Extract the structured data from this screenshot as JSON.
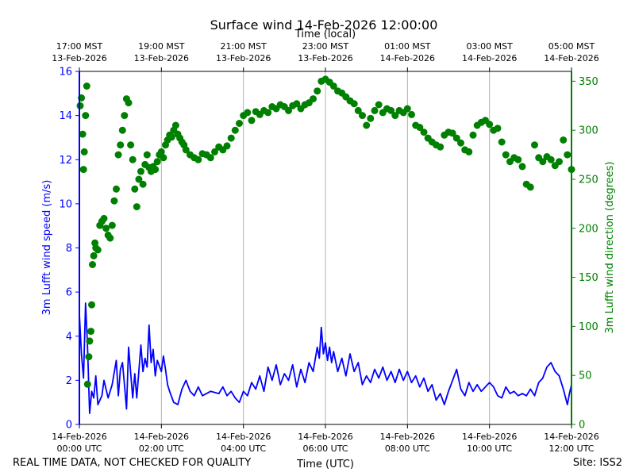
{
  "footer": {
    "left_note": "REAL TIME DATA, NOT CHECKED FOR QUALITY",
    "site": "Site: ISS2"
  },
  "colors": {
    "speed": "#0000ff",
    "direction": "#008000",
    "grid": "#b0b0b0"
  },
  "chart_data": {
    "type": "line",
    "title": "Surface wind 14-Feb-2026 12:00:00",
    "xlabel": "Time (UTC)",
    "xlabel_top": "Time (local)",
    "ylabel": "3m Lufft wind speed (m/s)",
    "ylabel_right": "3m Lufft wind direction (degrees)",
    "xlim_hours": [
      0,
      12
    ],
    "ylim": [
      0,
      16
    ],
    "ylim_right": [
      0,
      360
    ],
    "yticks": [
      "0",
      "2",
      "4",
      "6",
      "8",
      "10",
      "12",
      "14",
      "16"
    ],
    "yticks_right": [
      "0",
      "50",
      "100",
      "150",
      "200",
      "250",
      "300",
      "350"
    ],
    "xticks_bottom": [
      {
        "hour": 0,
        "date": "14-Feb-2026",
        "time": "00:00 UTC"
      },
      {
        "hour": 2,
        "date": "14-Feb-2026",
        "time": "02:00 UTC"
      },
      {
        "hour": 4,
        "date": "14-Feb-2026",
        "time": "04:00 UTC"
      },
      {
        "hour": 6,
        "date": "14-Feb-2026",
        "time": "06:00 UTC"
      },
      {
        "hour": 8,
        "date": "14-Feb-2026",
        "time": "08:00 UTC"
      },
      {
        "hour": 10,
        "date": "14-Feb-2026",
        "time": "10:00 UTC"
      },
      {
        "hour": 12,
        "date": "14-Feb-2026",
        "time": "12:00 UTC"
      }
    ],
    "xticks_top": [
      {
        "hour": 0,
        "time": "17:00 MST",
        "date": "13-Feb-2026"
      },
      {
        "hour": 2,
        "time": "19:00 MST",
        "date": "13-Feb-2026"
      },
      {
        "hour": 4,
        "time": "21:00 MST",
        "date": "13-Feb-2026"
      },
      {
        "hour": 6,
        "time": "23:00 MST",
        "date": "13-Feb-2026"
      },
      {
        "hour": 8,
        "time": "01:00 MST",
        "date": "14-Feb-2026"
      },
      {
        "hour": 10,
        "time": "03:00 MST",
        "date": "14-Feb-2026"
      },
      {
        "hour": 12,
        "time": "05:00 MST",
        "date": "14-Feb-2026"
      }
    ],
    "series": [
      {
        "name": "3m Lufft wind speed",
        "axis": "left",
        "style": "line",
        "points": [
          [
            0.0,
            5.0
          ],
          [
            0.05,
            3.2
          ],
          [
            0.1,
            2.1
          ],
          [
            0.15,
            5.5
          ],
          [
            0.2,
            3.5
          ],
          [
            0.25,
            0.5
          ],
          [
            0.3,
            1.5
          ],
          [
            0.35,
            1.2
          ],
          [
            0.4,
            2.2
          ],
          [
            0.45,
            0.9
          ],
          [
            0.55,
            1.3
          ],
          [
            0.6,
            2.0
          ],
          [
            0.7,
            1.2
          ],
          [
            0.8,
            1.8
          ],
          [
            0.9,
            2.9
          ],
          [
            0.95,
            1.3
          ],
          [
            1.0,
            2.5
          ],
          [
            1.05,
            2.8
          ],
          [
            1.1,
            1.8
          ],
          [
            1.15,
            0.7
          ],
          [
            1.2,
            3.5
          ],
          [
            1.3,
            1.2
          ],
          [
            1.35,
            2.3
          ],
          [
            1.4,
            1.2
          ],
          [
            1.5,
            3.6
          ],
          [
            1.55,
            2.4
          ],
          [
            1.6,
            3.0
          ],
          [
            1.65,
            2.6
          ],
          [
            1.7,
            4.5
          ],
          [
            1.75,
            2.8
          ],
          [
            1.8,
            3.4
          ],
          [
            1.85,
            2.2
          ],
          [
            1.9,
            2.9
          ],
          [
            2.0,
            2.4
          ],
          [
            2.05,
            3.1
          ],
          [
            2.1,
            2.5
          ],
          [
            2.15,
            1.8
          ],
          [
            2.2,
            1.5
          ],
          [
            2.3,
            1.0
          ],
          [
            2.4,
            0.9
          ],
          [
            2.5,
            1.6
          ],
          [
            2.6,
            2.0
          ],
          [
            2.7,
            1.5
          ],
          [
            2.8,
            1.3
          ],
          [
            2.9,
            1.7
          ],
          [
            3.0,
            1.3
          ],
          [
            3.2,
            1.5
          ],
          [
            3.4,
            1.4
          ],
          [
            3.5,
            1.7
          ],
          [
            3.6,
            1.3
          ],
          [
            3.7,
            1.5
          ],
          [
            3.8,
            1.2
          ],
          [
            3.9,
            1.0
          ],
          [
            4.0,
            1.5
          ],
          [
            4.1,
            1.3
          ],
          [
            4.2,
            1.9
          ],
          [
            4.3,
            1.6
          ],
          [
            4.4,
            2.2
          ],
          [
            4.5,
            1.5
          ],
          [
            4.6,
            2.6
          ],
          [
            4.7,
            2.0
          ],
          [
            4.8,
            2.7
          ],
          [
            4.9,
            1.8
          ],
          [
            5.0,
            2.3
          ],
          [
            5.1,
            2.0
          ],
          [
            5.2,
            2.7
          ],
          [
            5.3,
            1.7
          ],
          [
            5.4,
            2.5
          ],
          [
            5.5,
            1.9
          ],
          [
            5.6,
            2.8
          ],
          [
            5.7,
            2.4
          ],
          [
            5.8,
            3.5
          ],
          [
            5.85,
            3.0
          ],
          [
            5.9,
            4.4
          ],
          [
            5.95,
            3.2
          ],
          [
            6.0,
            3.7
          ],
          [
            6.05,
            2.9
          ],
          [
            6.1,
            3.5
          ],
          [
            6.15,
            2.8
          ],
          [
            6.2,
            3.3
          ],
          [
            6.3,
            2.4
          ],
          [
            6.4,
            3.0
          ],
          [
            6.5,
            2.2
          ],
          [
            6.6,
            3.2
          ],
          [
            6.7,
            2.4
          ],
          [
            6.8,
            2.8
          ],
          [
            6.9,
            1.8
          ],
          [
            7.0,
            2.2
          ],
          [
            7.1,
            1.9
          ],
          [
            7.2,
            2.5
          ],
          [
            7.3,
            2.1
          ],
          [
            7.4,
            2.6
          ],
          [
            7.5,
            2.0
          ],
          [
            7.6,
            2.4
          ],
          [
            7.7,
            1.9
          ],
          [
            7.8,
            2.5
          ],
          [
            7.9,
            2.0
          ],
          [
            8.0,
            2.4
          ],
          [
            8.1,
            1.9
          ],
          [
            8.2,
            2.2
          ],
          [
            8.3,
            1.7
          ],
          [
            8.4,
            2.1
          ],
          [
            8.5,
            1.5
          ],
          [
            8.6,
            1.8
          ],
          [
            8.7,
            1.1
          ],
          [
            8.8,
            1.4
          ],
          [
            8.9,
            0.9
          ],
          [
            9.0,
            1.5
          ],
          [
            9.1,
            2.0
          ],
          [
            9.2,
            2.5
          ],
          [
            9.3,
            1.6
          ],
          [
            9.4,
            1.3
          ],
          [
            9.5,
            1.9
          ],
          [
            9.6,
            1.5
          ],
          [
            9.7,
            1.8
          ],
          [
            9.8,
            1.5
          ],
          [
            9.9,
            1.7
          ],
          [
            10.0,
            1.9
          ],
          [
            10.1,
            1.7
          ],
          [
            10.2,
            1.3
          ],
          [
            10.3,
            1.2
          ],
          [
            10.4,
            1.7
          ],
          [
            10.5,
            1.4
          ],
          [
            10.6,
            1.5
          ],
          [
            10.7,
            1.3
          ],
          [
            10.8,
            1.4
          ],
          [
            10.9,
            1.3
          ],
          [
            11.0,
            1.6
          ],
          [
            11.1,
            1.3
          ],
          [
            11.2,
            1.9
          ],
          [
            11.3,
            2.1
          ],
          [
            11.4,
            2.6
          ],
          [
            11.5,
            2.8
          ],
          [
            11.6,
            2.4
          ],
          [
            11.7,
            2.2
          ],
          [
            11.8,
            1.6
          ],
          [
            11.9,
            0.9
          ],
          [
            11.95,
            1.4
          ],
          [
            12.0,
            1.8
          ]
        ]
      },
      {
        "name": "3m Lufft wind direction",
        "axis": "right",
        "style": "markers",
        "points": [
          [
            0.02,
            325
          ],
          [
            0.05,
            333
          ],
          [
            0.08,
            296
          ],
          [
            0.1,
            260
          ],
          [
            0.12,
            278
          ],
          [
            0.15,
            315
          ],
          [
            0.18,
            345
          ],
          [
            0.2,
            41
          ],
          [
            0.23,
            69
          ],
          [
            0.25,
            85
          ],
          [
            0.28,
            95
          ],
          [
            0.3,
            122
          ],
          [
            0.32,
            163
          ],
          [
            0.35,
            172
          ],
          [
            0.38,
            185
          ],
          [
            0.4,
            180
          ],
          [
            0.45,
            178
          ],
          [
            0.5,
            203
          ],
          [
            0.55,
            207
          ],
          [
            0.6,
            210
          ],
          [
            0.65,
            200
          ],
          [
            0.7,
            193
          ],
          [
            0.75,
            190
          ],
          [
            0.8,
            203
          ],
          [
            0.85,
            228
          ],
          [
            0.9,
            240
          ],
          [
            0.95,
            275
          ],
          [
            1.0,
            285
          ],
          [
            1.05,
            300
          ],
          [
            1.1,
            315
          ],
          [
            1.15,
            332
          ],
          [
            1.2,
            328
          ],
          [
            1.25,
            285
          ],
          [
            1.3,
            270
          ],
          [
            1.35,
            240
          ],
          [
            1.4,
            222
          ],
          [
            1.45,
            250
          ],
          [
            1.5,
            258
          ],
          [
            1.55,
            245
          ],
          [
            1.6,
            265
          ],
          [
            1.65,
            275
          ],
          [
            1.7,
            262
          ],
          [
            1.75,
            258
          ],
          [
            1.8,
            263
          ],
          [
            1.85,
            260
          ],
          [
            1.9,
            268
          ],
          [
            1.95,
            275
          ],
          [
            2.0,
            278
          ],
          [
            2.05,
            272
          ],
          [
            2.1,
            285
          ],
          [
            2.15,
            290
          ],
          [
            2.2,
            295
          ],
          [
            2.25,
            293
          ],
          [
            2.3,
            300
          ],
          [
            2.35,
            305
          ],
          [
            2.4,
            296
          ],
          [
            2.45,
            292
          ],
          [
            2.5,
            288
          ],
          [
            2.55,
            285
          ],
          [
            2.6,
            280
          ],
          [
            2.7,
            275
          ],
          [
            2.8,
            272
          ],
          [
            2.9,
            270
          ],
          [
            3.0,
            276
          ],
          [
            3.1,
            275
          ],
          [
            3.2,
            272
          ],
          [
            3.3,
            278
          ],
          [
            3.4,
            283
          ],
          [
            3.5,
            280
          ],
          [
            3.6,
            284
          ],
          [
            3.7,
            292
          ],
          [
            3.8,
            300
          ],
          [
            3.9,
            307
          ],
          [
            4.0,
            315
          ],
          [
            4.1,
            318
          ],
          [
            4.2,
            310
          ],
          [
            4.3,
            319
          ],
          [
            4.4,
            316
          ],
          [
            4.5,
            320
          ],
          [
            4.6,
            318
          ],
          [
            4.7,
            324
          ],
          [
            4.8,
            322
          ],
          [
            4.9,
            326
          ],
          [
            5.0,
            324
          ],
          [
            5.1,
            320
          ],
          [
            5.2,
            325
          ],
          [
            5.3,
            327
          ],
          [
            5.4,
            322
          ],
          [
            5.5,
            326
          ],
          [
            5.6,
            328
          ],
          [
            5.7,
            332
          ],
          [
            5.8,
            340
          ],
          [
            5.9,
            350
          ],
          [
            6.0,
            352
          ],
          [
            6.1,
            349
          ],
          [
            6.2,
            345
          ],
          [
            6.3,
            340
          ],
          [
            6.4,
            338
          ],
          [
            6.5,
            334
          ],
          [
            6.6,
            330
          ],
          [
            6.7,
            327
          ],
          [
            6.8,
            320
          ],
          [
            6.9,
            315
          ],
          [
            7.0,
            305
          ],
          [
            7.1,
            312
          ],
          [
            7.2,
            320
          ],
          [
            7.3,
            326
          ],
          [
            7.4,
            318
          ],
          [
            7.5,
            322
          ],
          [
            7.6,
            320
          ],
          [
            7.7,
            315
          ],
          [
            7.8,
            320
          ],
          [
            7.9,
            318
          ],
          [
            8.0,
            322
          ],
          [
            8.1,
            316
          ],
          [
            8.2,
            305
          ],
          [
            8.3,
            303
          ],
          [
            8.4,
            298
          ],
          [
            8.5,
            292
          ],
          [
            8.6,
            288
          ],
          [
            8.7,
            285
          ],
          [
            8.8,
            283
          ],
          [
            8.9,
            295
          ],
          [
            9.0,
            298
          ],
          [
            9.1,
            297
          ],
          [
            9.2,
            292
          ],
          [
            9.3,
            287
          ],
          [
            9.4,
            280
          ],
          [
            9.5,
            278
          ],
          [
            9.6,
            295
          ],
          [
            9.7,
            305
          ],
          [
            9.8,
            308
          ],
          [
            9.9,
            310
          ],
          [
            10.0,
            306
          ],
          [
            10.1,
            300
          ],
          [
            10.2,
            302
          ],
          [
            10.3,
            288
          ],
          [
            10.4,
            275
          ],
          [
            10.5,
            268
          ],
          [
            10.6,
            272
          ],
          [
            10.7,
            270
          ],
          [
            10.8,
            263
          ],
          [
            10.9,
            245
          ],
          [
            11.0,
            242
          ],
          [
            11.1,
            285
          ],
          [
            11.2,
            272
          ],
          [
            11.3,
            268
          ],
          [
            11.4,
            273
          ],
          [
            11.5,
            270
          ],
          [
            11.6,
            264
          ],
          [
            11.7,
            268
          ],
          [
            11.8,
            290
          ],
          [
            11.9,
            275
          ],
          [
            12.0,
            260
          ]
        ]
      }
    ]
  }
}
